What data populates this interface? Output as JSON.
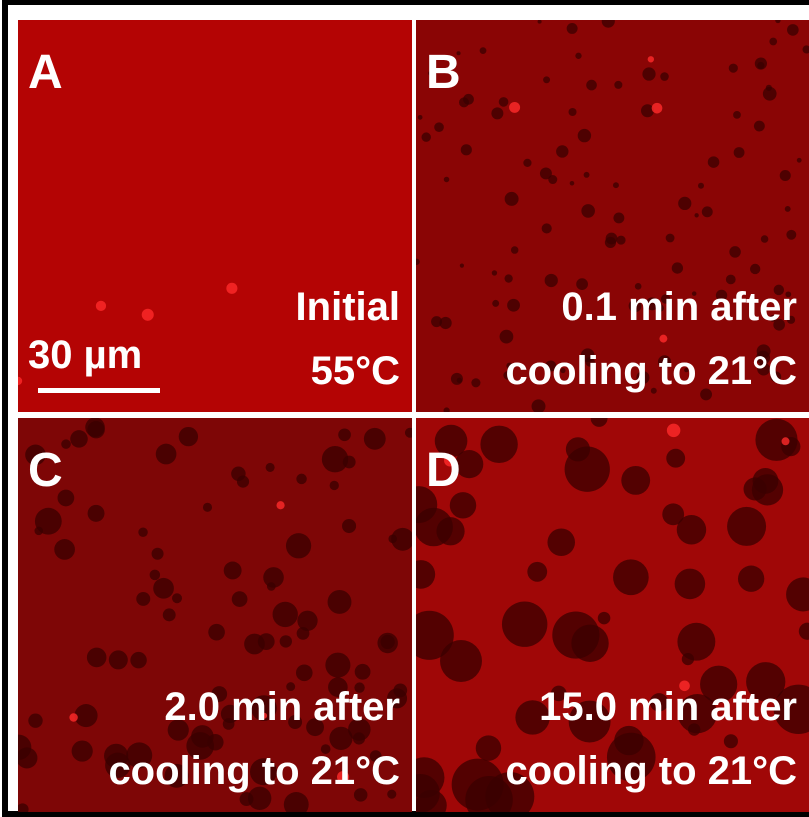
{
  "panels": [
    {
      "label": "A",
      "caption": [
        "Initial",
        "55°C"
      ]
    },
    {
      "label": "B",
      "caption": [
        "0.1 min after",
        "cooling to 21°C"
      ]
    },
    {
      "label": "C",
      "caption": [
        "2.0 min after",
        "cooling to 21°C"
      ]
    },
    {
      "label": "D",
      "caption": [
        "15.0 min after",
        "cooling to 21°C"
      ]
    }
  ],
  "scale_bar": {
    "label": "30 µm"
  }
}
